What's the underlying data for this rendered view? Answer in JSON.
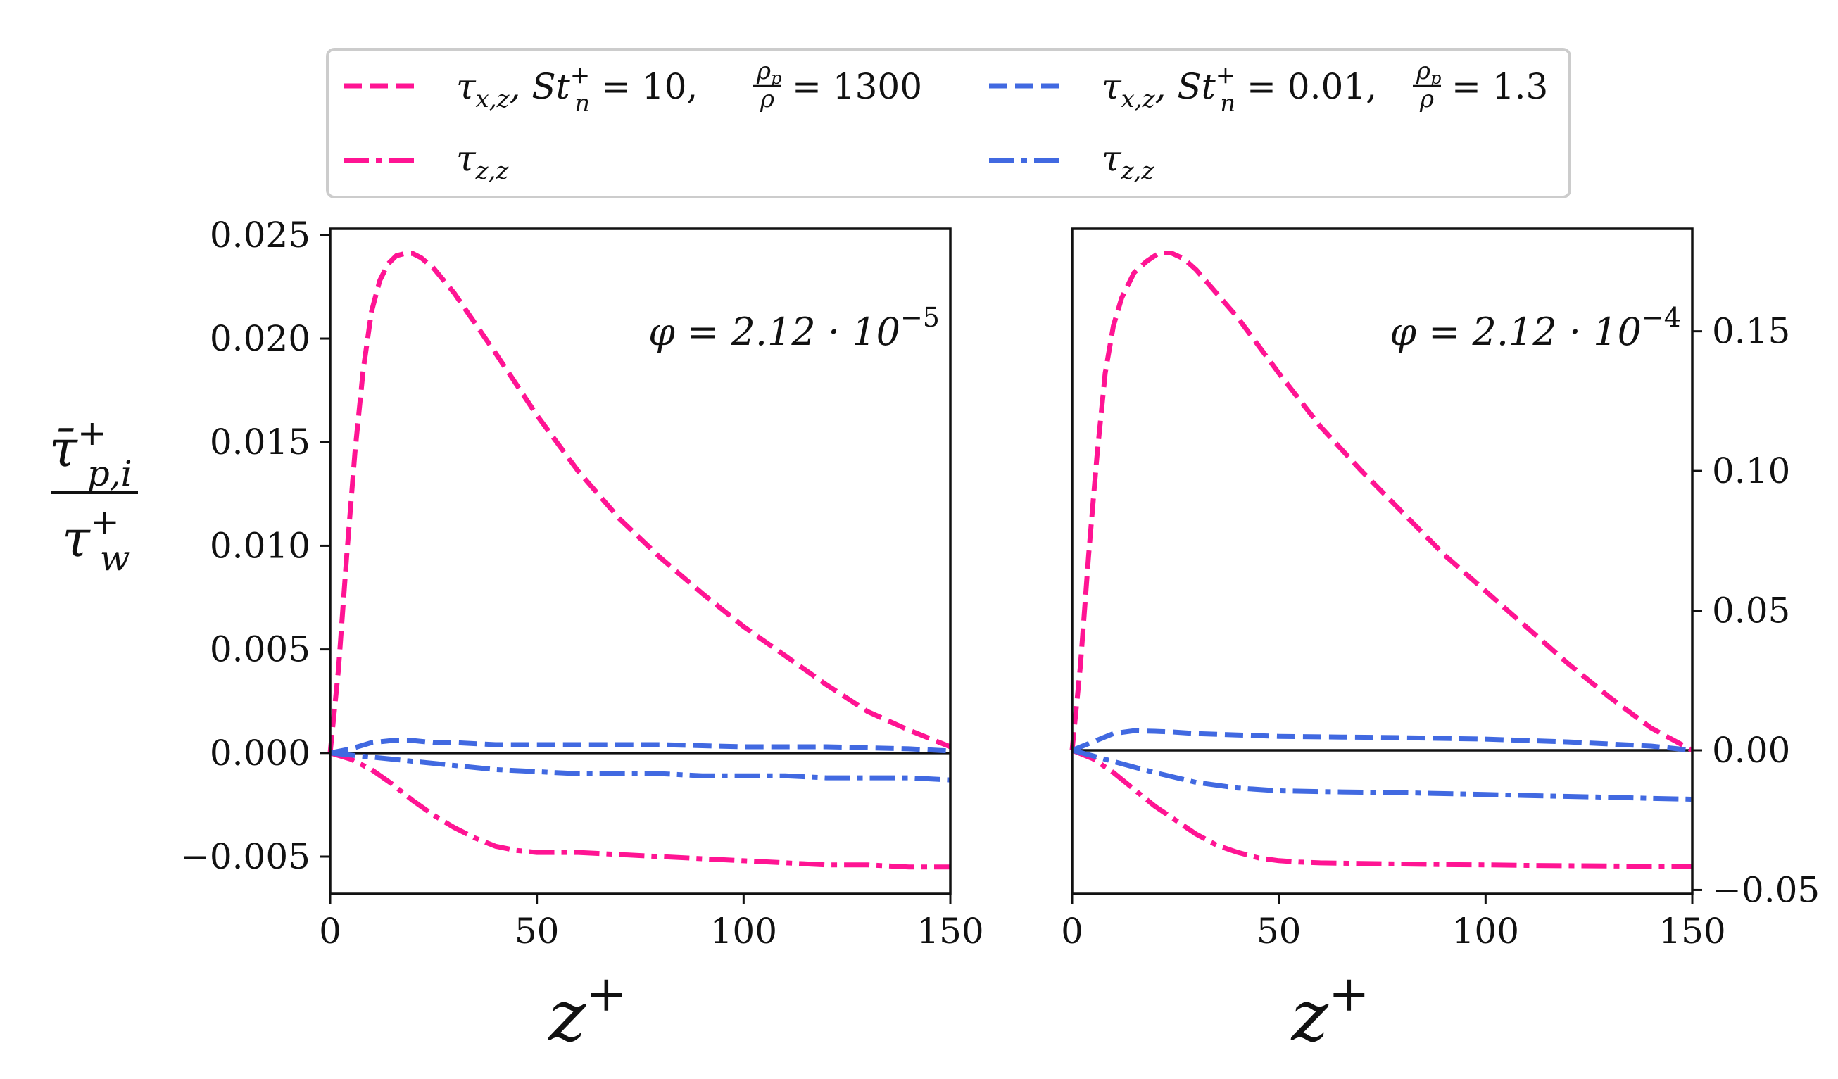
{
  "chart_data": [
    {
      "type": "line",
      "panel": "left",
      "annotation": "φ = 2.12 · 10",
      "annotation_exp": "−5",
      "ylabel_top": "τ̄",
      "ylabel_sup": "+",
      "ylabel_sub": "p,i",
      "ylabel_bottom": "τ",
      "ylabel_bottom_sub": "w",
      "ylabel_bottom_sup": "+",
      "xlabel": "z",
      "xlabel_sup": "+",
      "xlim": [
        0,
        150
      ],
      "ylim": [
        -0.0068,
        0.0253
      ],
      "xticks": [
        0,
        50,
        100,
        150
      ],
      "xtick_labels": [
        "0",
        "50",
        "100",
        "150"
      ],
      "yticks": [
        -0.005,
        0.0,
        0.005,
        0.01,
        0.015,
        0.02,
        0.025
      ],
      "ytick_labels": [
        "−0.005",
        "0.000",
        "0.005",
        "0.010",
        "0.015",
        "0.020",
        "0.025"
      ],
      "y_axis_side": "left",
      "series": [
        {
          "name": "pink-dashed",
          "color": "#ff1493",
          "dash": "dashed",
          "x": [
            0,
            2,
            4,
            6,
            8,
            10,
            12,
            14,
            16,
            18,
            20,
            22,
            25,
            30,
            40,
            50,
            60,
            70,
            80,
            90,
            100,
            110,
            120,
            130,
            140,
            150
          ],
          "y": [
            0,
            0.004,
            0.0095,
            0.0145,
            0.0185,
            0.0213,
            0.0228,
            0.0236,
            0.024,
            0.0241,
            0.0241,
            0.0239,
            0.0234,
            0.0222,
            0.0193,
            0.0163,
            0.0136,
            0.0113,
            0.0094,
            0.0077,
            0.0061,
            0.0047,
            0.0033,
            0.002,
            0.0011,
            0.0003
          ]
        },
        {
          "name": "pink-dashdot",
          "color": "#ff1493",
          "dash": "dashdot",
          "x": [
            0,
            5,
            10,
            15,
            20,
            25,
            30,
            35,
            40,
            45,
            50,
            60,
            70,
            80,
            90,
            100,
            110,
            120,
            130,
            140,
            150
          ],
          "y": [
            0,
            -0.0003,
            -0.0008,
            -0.0015,
            -0.0023,
            -0.003,
            -0.0036,
            -0.0041,
            -0.0045,
            -0.0047,
            -0.0048,
            -0.0048,
            -0.0049,
            -0.005,
            -0.0051,
            -0.0052,
            -0.0053,
            -0.0054,
            -0.0054,
            -0.0055,
            -0.0055
          ]
        },
        {
          "name": "blue-dashed",
          "color": "#4169e1",
          "dash": "dashed",
          "x": [
            0,
            5,
            10,
            15,
            20,
            25,
            30,
            40,
            50,
            60,
            80,
            100,
            120,
            140,
            150
          ],
          "y": [
            0,
            0.0002,
            0.0005,
            0.0006,
            0.0006,
            0.0005,
            0.0005,
            0.0004,
            0.0004,
            0.0004,
            0.0004,
            0.0003,
            0.0003,
            0.0002,
            0.0001
          ]
        },
        {
          "name": "blue-dashdot",
          "color": "#4169e1",
          "dash": "dashdot",
          "x": [
            0,
            5,
            10,
            20,
            30,
            40,
            50,
            60,
            70,
            80,
            90,
            100,
            110,
            120,
            130,
            140,
            150
          ],
          "y": [
            0,
            -0.0001,
            -0.0002,
            -0.0004,
            -0.0006,
            -0.0008,
            -0.0009,
            -0.001,
            -0.001,
            -0.001,
            -0.0011,
            -0.0011,
            -0.0011,
            -0.0012,
            -0.0012,
            -0.0012,
            -0.0013
          ]
        }
      ]
    },
    {
      "type": "line",
      "panel": "right",
      "annotation": "φ = 2.12 · 10",
      "annotation_exp": "−4",
      "xlabel": "z",
      "xlabel_sup": "+",
      "xlim": [
        0,
        150
      ],
      "ylim": [
        -0.0514,
        0.1867
      ],
      "xticks": [
        0,
        50,
        100,
        150
      ],
      "xtick_labels": [
        "0",
        "50",
        "100",
        "150"
      ],
      "yticks": [
        -0.05,
        0.0,
        0.05,
        0.1,
        0.15
      ],
      "ytick_labels": [
        "−0.05",
        "0.00",
        "0.05",
        "0.10",
        "0.15"
      ],
      "y_axis_side": "right",
      "series": [
        {
          "name": "pink-dashed",
          "color": "#ff1493",
          "dash": "dashed",
          "x": [
            0,
            2,
            4,
            6,
            8,
            10,
            12,
            15,
            18,
            21,
            24,
            27,
            30,
            40,
            50,
            60,
            70,
            80,
            90,
            100,
            110,
            120,
            130,
            140,
            150
          ],
          "y": [
            0,
            0.03,
            0.07,
            0.105,
            0.135,
            0.152,
            0.162,
            0.171,
            0.175,
            0.178,
            0.178,
            0.176,
            0.172,
            0.155,
            0.135,
            0.116,
            0.1,
            0.085,
            0.07,
            0.057,
            0.044,
            0.031,
            0.019,
            0.008,
            0.0
          ]
        },
        {
          "name": "pink-dashdot",
          "color": "#ff1493",
          "dash": "dashdot",
          "x": [
            0,
            5,
            10,
            15,
            20,
            25,
            30,
            35,
            40,
            45,
            50,
            55,
            60,
            70,
            80,
            90,
            100,
            110,
            120,
            130,
            140,
            150
          ],
          "y": [
            0,
            -0.003,
            -0.008,
            -0.014,
            -0.02,
            -0.025,
            -0.03,
            -0.034,
            -0.0365,
            -0.0385,
            -0.0395,
            -0.04,
            -0.0403,
            -0.0405,
            -0.0407,
            -0.0409,
            -0.041,
            -0.0412,
            -0.0413,
            -0.0414,
            -0.0415,
            -0.0415
          ]
        },
        {
          "name": "blue-dashed",
          "color": "#4169e1",
          "dash": "dashed",
          "x": [
            0,
            5,
            10,
            15,
            20,
            25,
            30,
            40,
            50,
            60,
            80,
            100,
            120,
            140,
            150
          ],
          "y": [
            0,
            0.003,
            0.006,
            0.007,
            0.0068,
            0.0065,
            0.006,
            0.0055,
            0.005,
            0.0048,
            0.0045,
            0.004,
            0.003,
            0.0015,
            0.0
          ]
        },
        {
          "name": "blue-dashdot",
          "color": "#4169e1",
          "dash": "dashdot",
          "x": [
            0,
            5,
            10,
            20,
            30,
            40,
            50,
            60,
            70,
            80,
            90,
            100,
            110,
            120,
            130,
            140,
            150
          ],
          "y": [
            0,
            -0.002,
            -0.004,
            -0.008,
            -0.0115,
            -0.0135,
            -0.0145,
            -0.0148,
            -0.015,
            -0.0152,
            -0.0155,
            -0.0158,
            -0.0162,
            -0.0165,
            -0.0168,
            -0.0172,
            -0.0175
          ]
        }
      ]
    }
  ],
  "legend": {
    "placement": "top-center",
    "items": [
      {
        "color": "#ff1493",
        "dash": "dashed",
        "text_main": "τ",
        "text_sub": "x,z",
        "text_rest": ", St",
        "text_sup": "+",
        "text_sub2": "n",
        "text_eq": " = 10,",
        "frac_num": "ρ",
        "frac_num_sub": "p",
        "frac_den": "ρ",
        "text_tail": "= 1300"
      },
      {
        "color": "#4169e1",
        "dash": "dashed",
        "text_main": "τ",
        "text_sub": "x,z",
        "text_rest": ", St",
        "text_sup": "+",
        "text_sub2": "n",
        "text_eq": " = 0.01,",
        "frac_num": "ρ",
        "frac_num_sub": "p",
        "frac_den": "ρ",
        "text_tail": "= 1.3"
      },
      {
        "color": "#ff1493",
        "dash": "dashdot",
        "text_main": "τ",
        "text_sub": "z,z"
      },
      {
        "color": "#4169e1",
        "dash": "dashdot",
        "text_main": "τ",
        "text_sub": "z,z"
      }
    ]
  }
}
